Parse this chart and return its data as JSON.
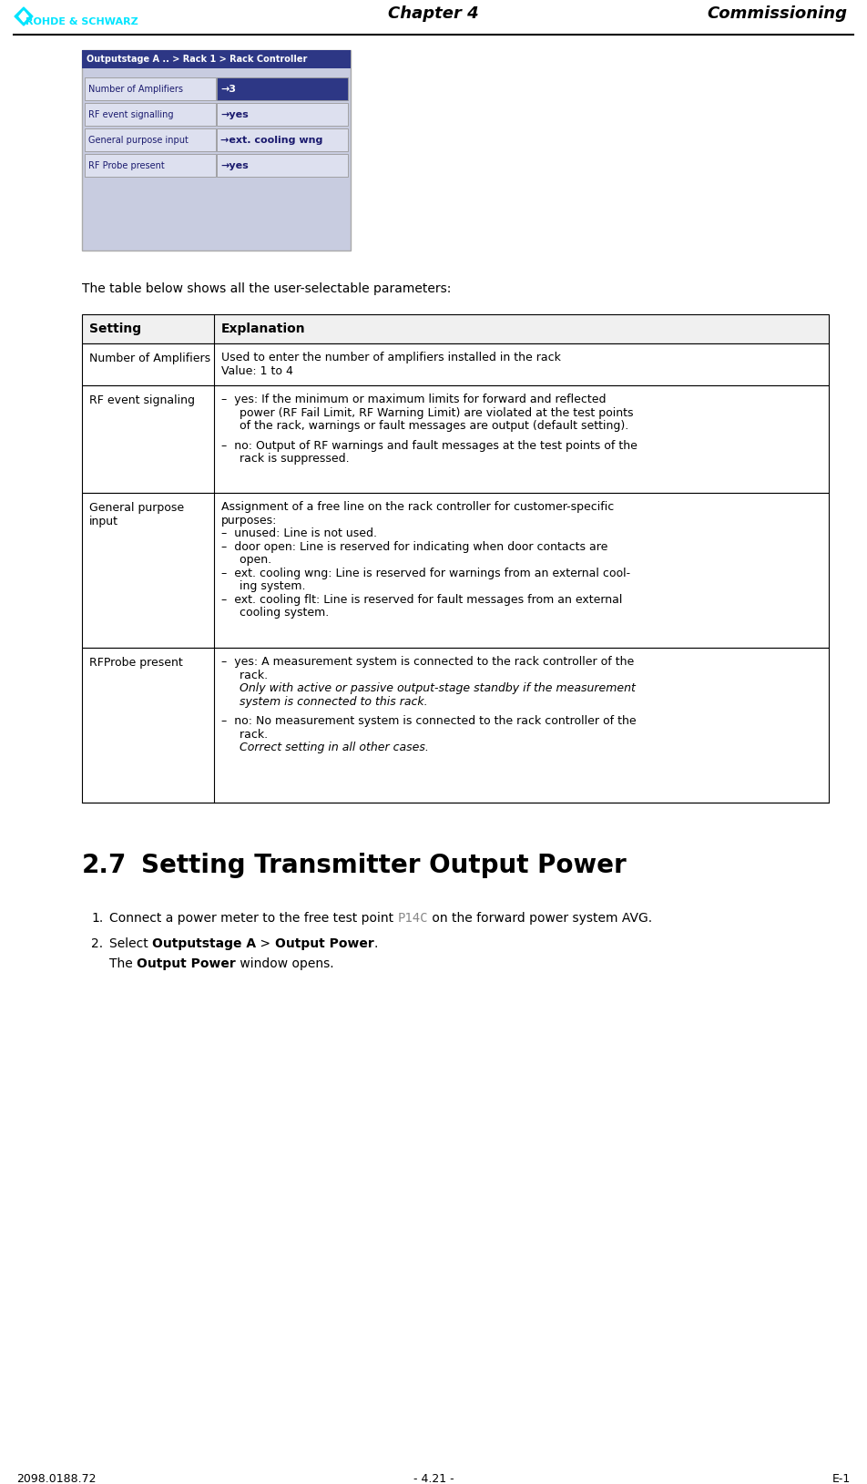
{
  "header_center": "Chapter 4",
  "header_right": "Commissioning",
  "footer_left": "2098.0188.72",
  "footer_center": "- 4.21 -",
  "footer_right": "E-1",
  "screenshot_title": "Outputstage A .. > Rack 1 > Rack Controller",
  "screenshot_rows": [
    [
      "Number of Amplifiers",
      "→3"
    ],
    [
      "RF event signalling",
      "→yes"
    ],
    [
      "General purpose input",
      "→ext. cooling wng"
    ],
    [
      "RF Probe present",
      "→yes"
    ]
  ],
  "intro_text": "The table below shows all the user-selectable parameters:",
  "table_rows": [
    {
      "setting": "Number of Amplifiers",
      "lines": [
        {
          "text": "Used to enter the number of amplifiers installed in the rack",
          "italic": false
        },
        {
          "text": "Value: 1 to 4",
          "italic": false
        }
      ]
    },
    {
      "setting": "RF event signaling",
      "lines": [
        {
          "text": "–  yes: If the minimum or maximum limits for forward and reflected",
          "italic": false
        },
        {
          "text": "     power (RF Fail Limit, RF Warning Limit) are violated at the test points",
          "italic": false
        },
        {
          "text": "     of the rack, warnings or fault messages are output (default setting).",
          "italic": false
        },
        {
          "text": "",
          "italic": false
        },
        {
          "text": "–  no: Output of RF warnings and fault messages at the test points of the",
          "italic": false
        },
        {
          "text": "     rack is suppressed.",
          "italic": false
        }
      ]
    },
    {
      "setting": "General purpose\ninput",
      "lines": [
        {
          "text": "Assignment of a free line on the rack controller for customer-specific",
          "italic": false
        },
        {
          "text": "purposes:",
          "italic": false
        },
        {
          "text": "–  unused: Line is not used.",
          "italic": false
        },
        {
          "text": "–  door open: Line is reserved for indicating when door contacts are",
          "italic": false
        },
        {
          "text": "     open.",
          "italic": false
        },
        {
          "text": "–  ext. cooling wng: Line is reserved for warnings from an external cool-",
          "italic": false
        },
        {
          "text": "     ing system.",
          "italic": false
        },
        {
          "text": "–  ext. cooling flt: Line is reserved for fault messages from an external",
          "italic": false
        },
        {
          "text": "     cooling system.",
          "italic": false
        }
      ]
    },
    {
      "setting": "RFProbe present",
      "lines": [
        {
          "text": "–  yes: A measurement system is connected to the rack controller of the",
          "italic": false
        },
        {
          "text": "     rack.",
          "italic": false
        },
        {
          "text": "     Only with active or passive output-stage standby if the measurement",
          "italic": true
        },
        {
          "text": "     system is connected to this rack.",
          "italic": true
        },
        {
          "text": "",
          "italic": false
        },
        {
          "text": "–  no: No measurement system is connected to the rack controller of the",
          "italic": false
        },
        {
          "text": "     rack.",
          "italic": false
        },
        {
          "text": "     Correct setting in all other cases.",
          "italic": true
        }
      ]
    }
  ],
  "section_number": "2.7",
  "section_title": "Setting Transmitter Output Power",
  "bg_color": "#ffffff",
  "logo_color": "#00e5ff",
  "rs_text_color": "#00e5ff",
  "header_line_color": "#000000",
  "screenshot_bg": "#c8cce0",
  "screenshot_title_bg": "#2d3785",
  "screenshot_highlight_bg": "#2d3785",
  "screenshot_row_bg": "#dde0ef",
  "screenshot_row_dark_color": "#1a1a6e",
  "table_border_color": "#000000",
  "table_header_bg": "#f0f0f0"
}
